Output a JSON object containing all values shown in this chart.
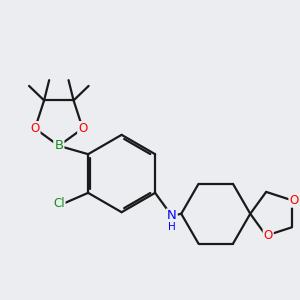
{
  "bg_color": "#ebedf0",
  "bond_color": "#1a1a1a",
  "bond_width": 1.6,
  "atom_colors": {
    "B": "#1a8c1a",
    "O": "#ff0000",
    "N": "#0000ff",
    "Cl": "#1a8c1a",
    "C": "#1a1a1a"
  },
  "font_size": 8.5,
  "title": ""
}
